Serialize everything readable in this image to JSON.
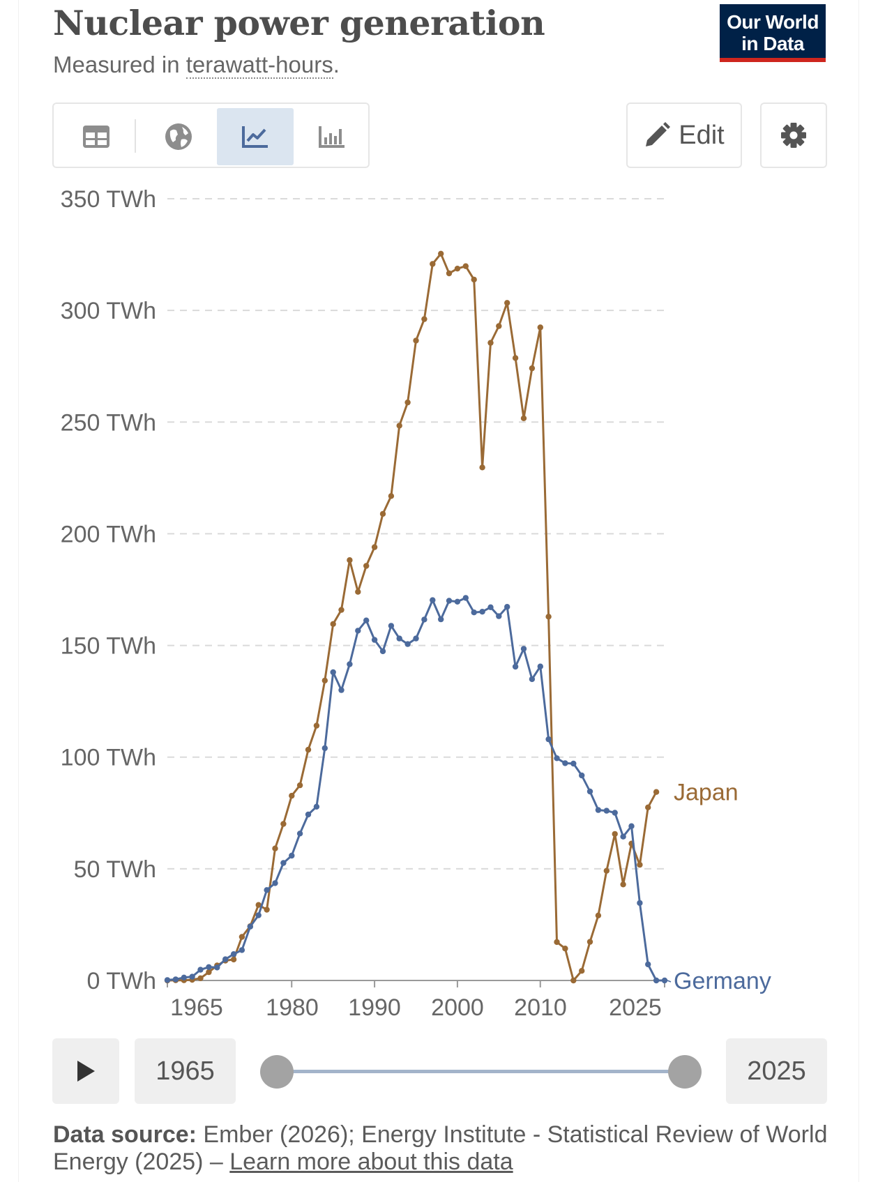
{
  "header": {
    "title": "Nuclear power generation",
    "subtitle_prefix": "Measured in ",
    "subtitle_unit": "terawatt-hours",
    "subtitle_suffix": ".",
    "logo_line1": "Our World",
    "logo_line2": "in Data"
  },
  "toolbar": {
    "tabs": [
      "table-icon",
      "globe-icon",
      "line-chart-icon",
      "bar-chart-icon"
    ],
    "active_tab": "line-chart-icon",
    "edit_label": "Edit",
    "settings_icon": "gear-icon"
  },
  "colors": {
    "japan": "#9a6a35",
    "germany": "#4c6a9c",
    "active_tab": "#dbe5f0",
    "logo_bg": "#002147",
    "logo_accent": "#ce261e"
  },
  "chart_data": {
    "type": "line",
    "title": "Nuclear power generation",
    "ylim": [
      0,
      350
    ],
    "y_ticks": [
      0,
      50,
      100,
      150,
      200,
      250,
      300,
      350
    ],
    "y_tick_labels": [
      "0 TWh",
      "50 TWh",
      "100 TWh",
      "150 TWh",
      "200 TWh",
      "250 TWh",
      "300 TWh",
      "350 TWh"
    ],
    "x_tick_labels": [
      {
        "year": 1965,
        "label": "1965"
      },
      {
        "year": 1980,
        "label": "1980"
      },
      {
        "year": 1990,
        "label": "1990"
      },
      {
        "year": 2000,
        "label": "2000"
      },
      {
        "year": 2010,
        "label": "2010"
      },
      {
        "year": 2025,
        "label": "2025"
      }
    ],
    "grid": "horizontal dashed",
    "x_start": 1965,
    "series": [
      {
        "name": "Japan",
        "color": "#9a6a35",
        "years": [
          1965,
          1966,
          1967,
          1968,
          1969,
          1970,
          1971,
          1972,
          1973,
          1974,
          1975,
          1976,
          1977,
          1978,
          1979,
          1980,
          1981,
          1982,
          1983,
          1984,
          1985,
          1986,
          1987,
          1988,
          1989,
          1990,
          1991,
          1992,
          1993,
          1994,
          1995,
          1996,
          1997,
          1998,
          1999,
          2000,
          2001,
          2002,
          2003,
          2004,
          2005,
          2006,
          2007,
          2008,
          2009,
          2010,
          2011,
          2012,
          2013,
          2014,
          2015,
          2016,
          2017,
          2018,
          2019,
          2020,
          2021,
          2022,
          2023,
          2024,
          2025
        ],
        "values": [
          0.0,
          0.1,
          0.1,
          0.3,
          1.0,
          3.7,
          6.7,
          8.9,
          9.4,
          19.5,
          24.3,
          33.8,
          31.7,
          59.1,
          70.1,
          82.7,
          87.4,
          103.3,
          114.1,
          134.3,
          159.6,
          165.9,
          188.2,
          174.0,
          185.6,
          194.0,
          208.9,
          216.9,
          248.4,
          258.8,
          286.5,
          296.1,
          320.8,
          325.4,
          316.6,
          318.7,
          319.8,
          313.8,
          229.7,
          285.5,
          293.0,
          303.4,
          278.7,
          251.7,
          274.1,
          292.4,
          162.9,
          17.2,
          14.3,
          0.0,
          4.3,
          17.3,
          29.1,
          49.1,
          65.6,
          43.0,
          61.3,
          51.8,
          77.5,
          84.4,
          null
        ]
      },
      {
        "name": "Germany",
        "color": "#4c6a9c",
        "years": [
          1965,
          1966,
          1967,
          1968,
          1969,
          1970,
          1971,
          1972,
          1973,
          1974,
          1975,
          1976,
          1977,
          1978,
          1979,
          1980,
          1981,
          1982,
          1983,
          1984,
          1985,
          1986,
          1987,
          1988,
          1989,
          1990,
          1991,
          1992,
          1993,
          1994,
          1995,
          1996,
          1997,
          1998,
          1999,
          2000,
          2001,
          2002,
          2003,
          2004,
          2005,
          2006,
          2007,
          2008,
          2009,
          2010,
          2011,
          2012,
          2013,
          2014,
          2015,
          2016,
          2017,
          2018,
          2019,
          2020,
          2021,
          2022,
          2023,
          2024,
          2025
        ],
        "values": [
          0.2,
          0.5,
          1.3,
          1.7,
          4.8,
          6.0,
          5.8,
          9.5,
          11.8,
          13.6,
          24.1,
          29.2,
          40.5,
          43.6,
          52.6,
          55.9,
          65.8,
          74.3,
          77.8,
          104.0,
          138.0,
          130.0,
          141.6,
          156.6,
          161.2,
          152.5,
          147.4,
          158.8,
          153.1,
          150.6,
          153.1,
          161.6,
          170.3,
          161.7,
          170.0,
          169.6,
          171.3,
          164.8,
          165.1,
          167.1,
          163.1,
          167.3,
          140.5,
          148.5,
          134.9,
          140.6,
          108.0,
          99.5,
          97.3,
          97.1,
          91.8,
          84.6,
          76.3,
          76.0,
          75.1,
          64.4,
          69.1,
          34.7,
          7.2,
          0.0,
          0.0
        ]
      }
    ]
  },
  "timeline": {
    "play_icon": "play-icon",
    "start_year": "1965",
    "end_year": "2025"
  },
  "footer": {
    "source_label": "Data source:",
    "source_text": " Ember (2026); Energy Institute - Statistical Review of World Energy (2025) – ",
    "learn_more": "Learn more about this data"
  }
}
